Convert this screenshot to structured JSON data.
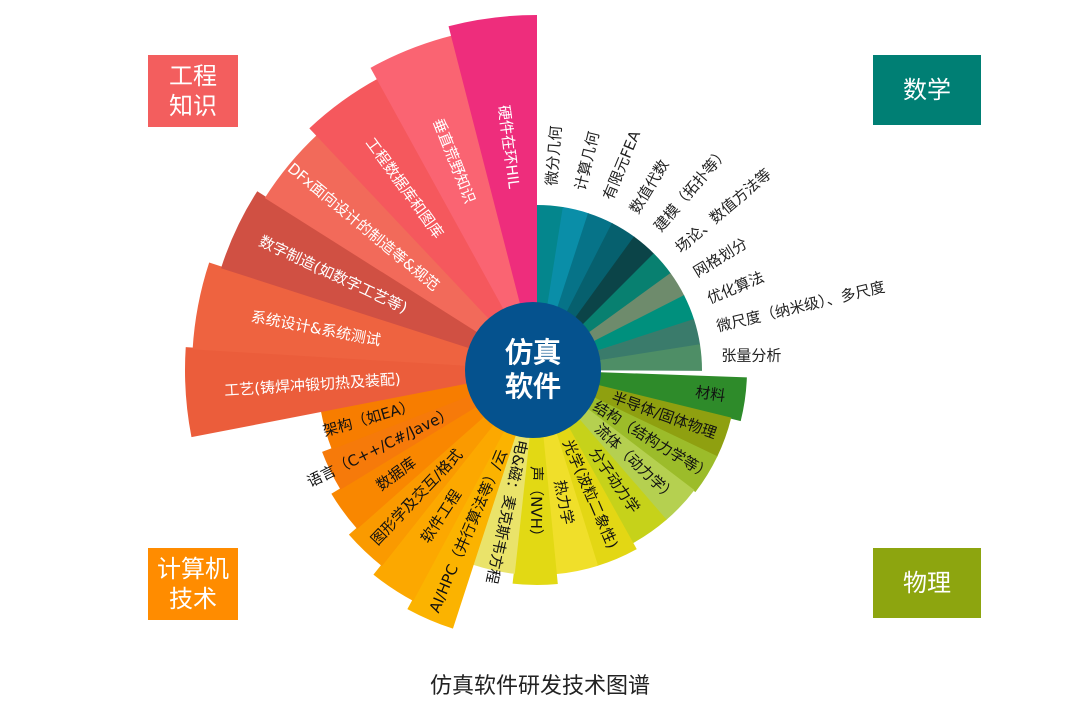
{
  "title": "仿真软件研发技术图谱",
  "hub": {
    "line1": "仿真",
    "line2": "软件",
    "color": "#05528E"
  },
  "corners": {
    "engineering": {
      "label": "工程知识",
      "color": "#F35E5E"
    },
    "math": {
      "label": "数学",
      "color": "#007F74"
    },
    "computer": {
      "label": "计算机技术",
      "color": "#FF8C00"
    },
    "physics": {
      "label": "物理",
      "color": "#8DA50F"
    }
  },
  "segments": {
    "math": [
      {
        "label": "微分几何",
        "color": "#04868D"
      },
      {
        "label": "计算几何",
        "color": "#0A8EA8"
      },
      {
        "label": "有限元FEA",
        "color": "#067388"
      },
      {
        "label": "数值代数",
        "color": "#06606E"
      },
      {
        "label": "建模（拓扑等）",
        "color": "#0B4448"
      },
      {
        "label": "场论、数值方法等",
        "color": "#088070"
      },
      {
        "label": "网格划分",
        "color": "#6E8B6C"
      },
      {
        "label": "优化算法",
        "color": "#00907D"
      },
      {
        "label": "微尺度（纳米级）、多尺度",
        "color": "#3A7B6B"
      },
      {
        "label": "张量分析",
        "color": "#4E8E66"
      }
    ],
    "physics": [
      {
        "label": "材料",
        "color": "#2E8B2A"
      },
      {
        "label": "半导体/固体物理",
        "color": "#8FA010"
      },
      {
        "label": "结构（结构力学等）",
        "color": "#9CBC2A"
      },
      {
        "label": "流体（动力学）",
        "color": "#B5D050"
      },
      {
        "label": "分子动力学",
        "color": "#C6D21A"
      },
      {
        "label": "光学(波粒二象性)",
        "color": "#E3D714"
      },
      {
        "label": "热力学",
        "color": "#F0DF2A"
      },
      {
        "label": "声（NVH）",
        "color": "#E2D914"
      },
      {
        "label": "电&磁：麦克斯韦方程",
        "color": "#EAE36A"
      }
    ],
    "computer": [
      {
        "label": "AI/HPC（并行算法等）/云",
        "color": "#FBB300"
      },
      {
        "label": "软件工程",
        "color": "#FCA800"
      },
      {
        "label": "图形学及交互/格式",
        "color": "#FA9A00"
      },
      {
        "label": "数据库",
        "color": "#F98700"
      },
      {
        "label": "语言（C++/C#/Jave）",
        "color": "#F67A0A"
      },
      {
        "label": "架构（如EA）",
        "color": "#F77D00"
      }
    ],
    "engineering": [
      {
        "label": "工艺(铸焊冲锻切热及装配)",
        "color": "#EB5D3B"
      },
      {
        "label": "系统设计&系统测试",
        "color": "#EE6340"
      },
      {
        "label": "数字制造(如数字工艺等)",
        "color": "#D05043"
      },
      {
        "label": "DFx面向设计的制造等&规范",
        "color": "#F26A5A"
      },
      {
        "label": "工程数据库和图库",
        "color": "#F5585D"
      },
      {
        "label": "垂直荒野知识",
        "color": "#FA6472"
      },
      {
        "label": "硬件在环HIL",
        "color": "#EE2D7C"
      }
    ]
  }
}
